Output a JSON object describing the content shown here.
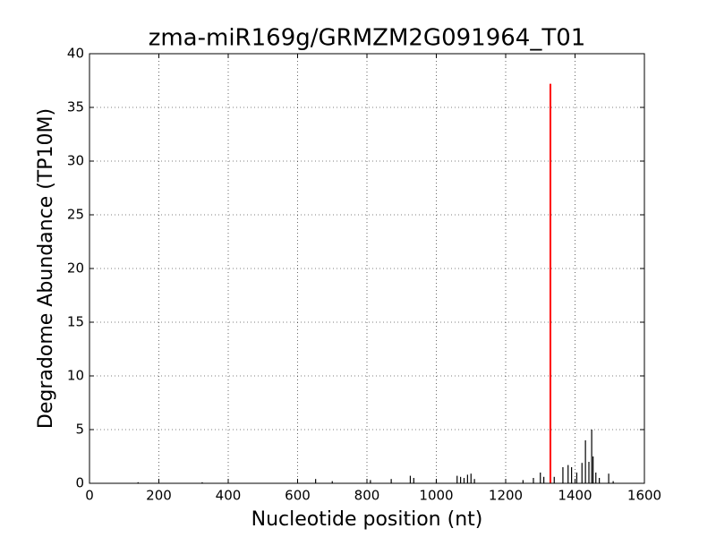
{
  "chart_data": {
    "type": "spike",
    "title": "zma-miR169g/GRMZM2G091964_T01",
    "xlabel": "Nucleotide position (nt)",
    "ylabel": "Degradome Abundance (TP10M)",
    "xlim": [
      0,
      1600
    ],
    "ylim": [
      0,
      40
    ],
    "xticks": [
      0,
      200,
      400,
      600,
      800,
      1000,
      1200,
      1400,
      1600
    ],
    "yticks": [
      0,
      5,
      10,
      15,
      20,
      25,
      30,
      35,
      40
    ],
    "grid": true,
    "series": [
      {
        "color": "#000000",
        "x": [
          140,
          325,
          652,
          700,
          810,
          870,
          925,
          935,
          1000,
          1060,
          1070,
          1080,
          1090,
          1100,
          1110,
          1250,
          1280,
          1300,
          1310,
          1340,
          1365,
          1380,
          1390,
          1405,
          1420,
          1430,
          1440,
          1448,
          1452,
          1460,
          1470,
          1497,
          1510
        ],
        "values": [
          0.1,
          0.1,
          0.4,
          0.2,
          0.3,
          0.4,
          0.7,
          0.5,
          0.3,
          0.7,
          0.6,
          0.5,
          0.8,
          0.9,
          0.4,
          0.3,
          0.5,
          1.0,
          0.6,
          0.6,
          1.5,
          1.7,
          1.5,
          1.0,
          1.9,
          4.0,
          2.0,
          5.0,
          2.5,
          1.0,
          0.5,
          0.9,
          0.2
        ]
      },
      {
        "color": "#ff0000",
        "x": [
          1329
        ],
        "values": [
          37.2
        ]
      }
    ]
  }
}
